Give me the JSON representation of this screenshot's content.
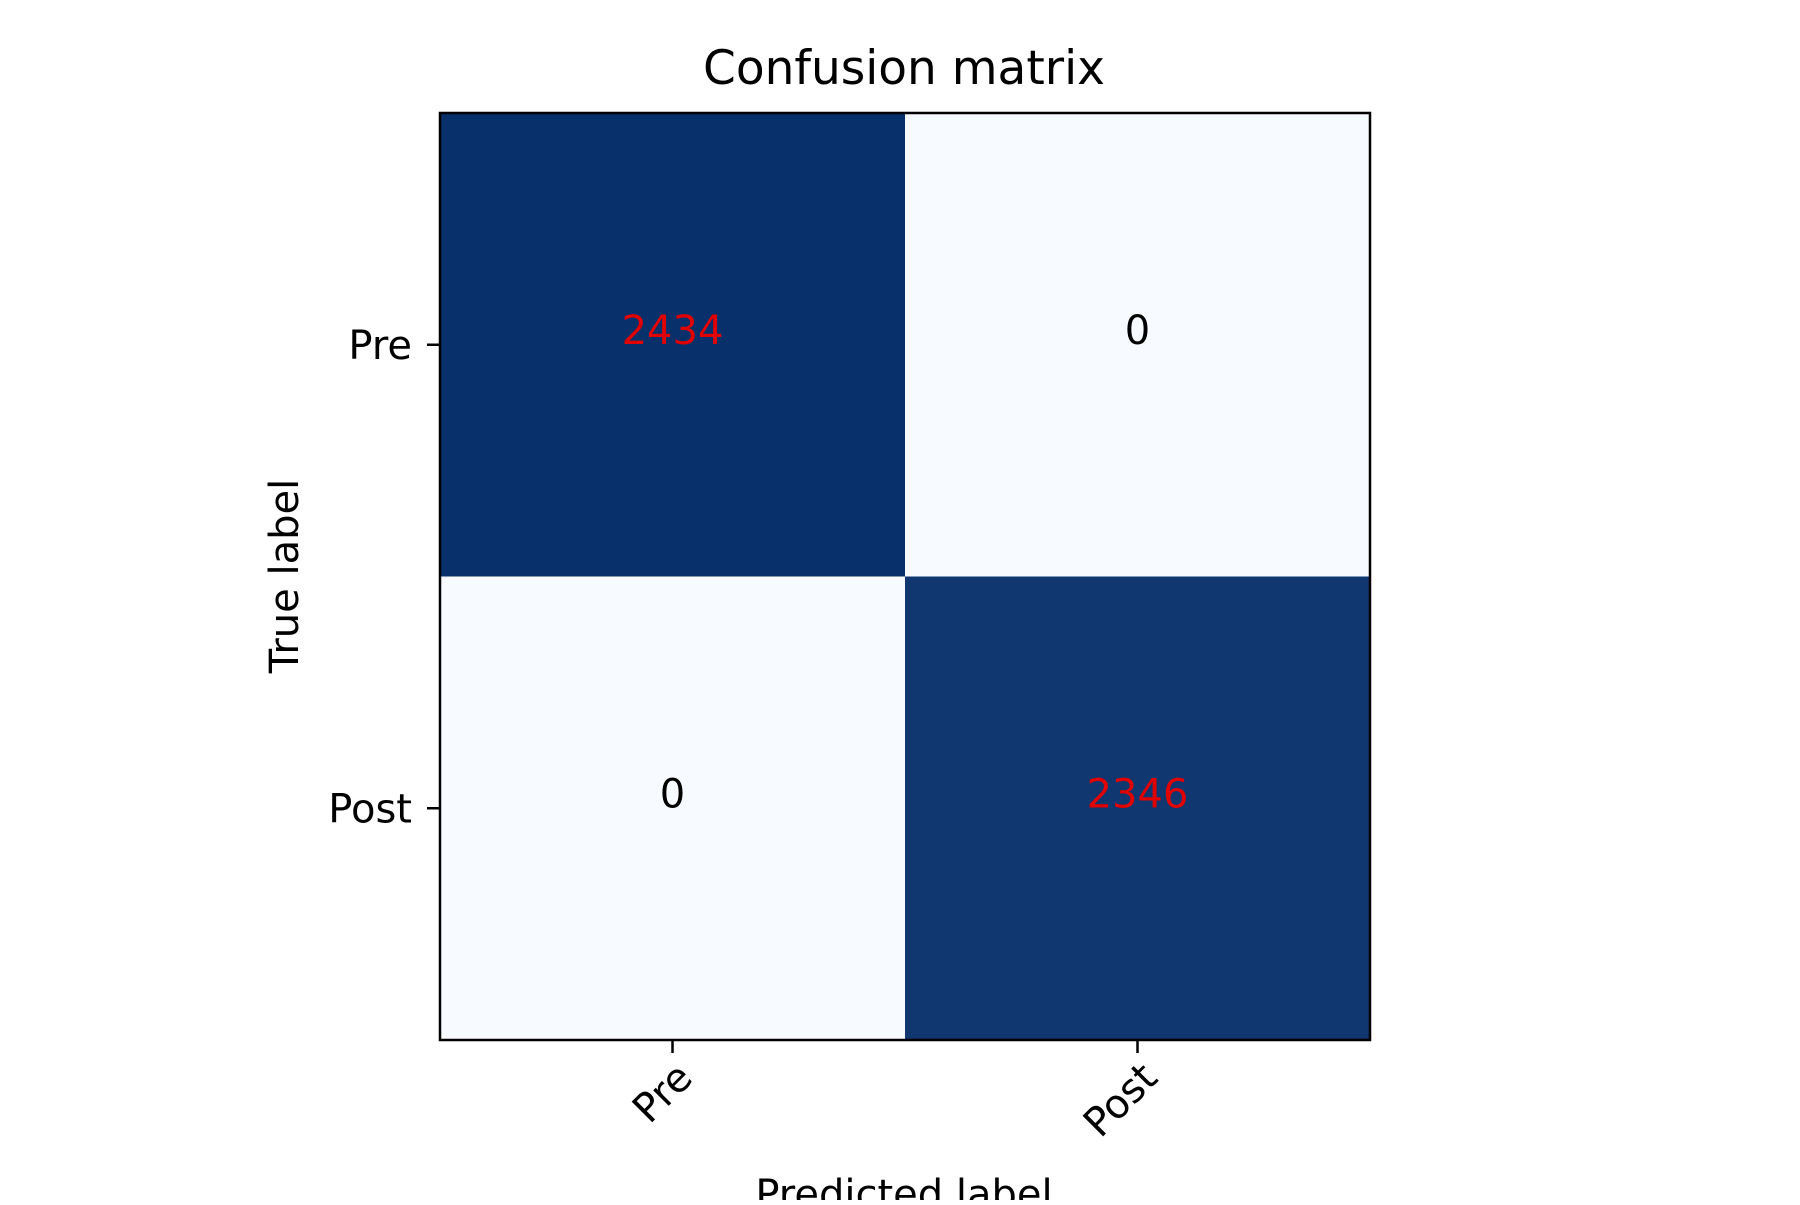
{
  "chart_data": {
    "type": "heatmap",
    "title": "Confusion matrix",
    "xlabel": "Predicted label",
    "ylabel": "True label",
    "x_categories": [
      "Pre",
      "Post"
    ],
    "y_categories": [
      "Pre",
      "Post"
    ],
    "values": [
      [
        2434,
        0
      ],
      [
        0,
        2346
      ]
    ],
    "colormap": {
      "low": "#f7fbff",
      "high": "#08306b"
    },
    "cell_text_colors": {
      "high": "#e00000",
      "low": "#000000"
    },
    "x_tick_rotation": 45,
    "grid": false,
    "colorbar": false
  }
}
